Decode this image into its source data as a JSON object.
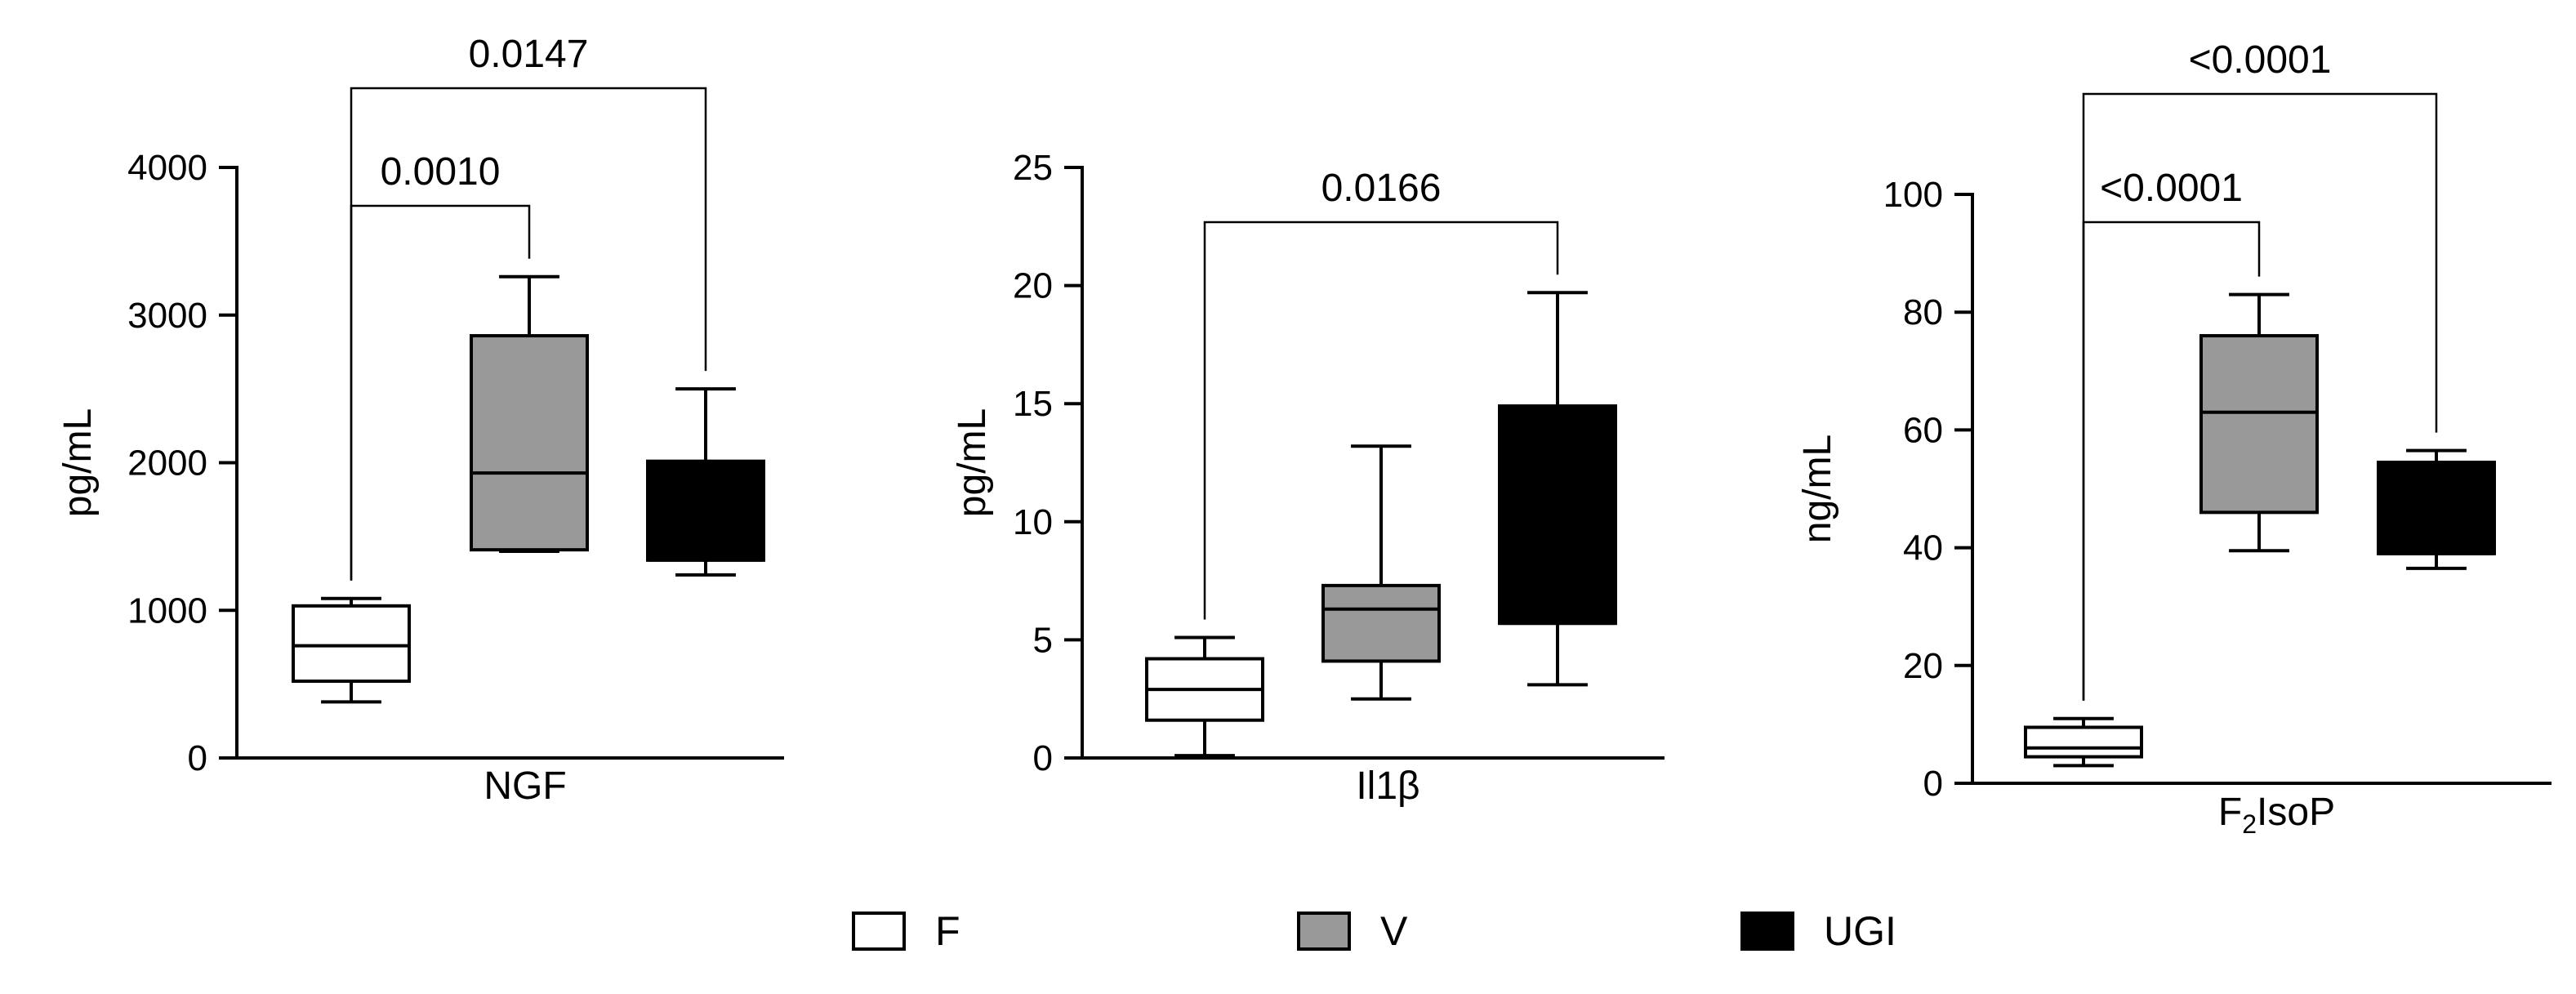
{
  "chart_data": [
    {
      "type": "box",
      "ylabel": "pg/mL",
      "xlabel": "NGF",
      "ylim": [
        0,
        4000
      ],
      "yticks": [
        0,
        1000,
        2000,
        3000,
        4000
      ],
      "ytick_labels": [
        "0",
        "1000",
        "2000",
        "3000",
        "4000"
      ],
      "series": [
        {
          "name": "F",
          "min": 380,
          "q1": 520,
          "median": 760,
          "q3": 1030,
          "max": 1080
        },
        {
          "name": "V",
          "min": 1400,
          "q1": 1410,
          "median": 1930,
          "q3": 2860,
          "max": 3260
        },
        {
          "name": "UGI",
          "min": 1240,
          "q1": 1340,
          "median": 1340,
          "q3": 2010,
          "max": 2500
        }
      ],
      "comparisons": [
        {
          "from": "F",
          "to": "V",
          "label": "0.0010"
        },
        {
          "from": "F",
          "to": "UGI",
          "label": "0.0147"
        }
      ]
    },
    {
      "type": "box",
      "ylabel": "pg/mL",
      "xlabel": "Il1β",
      "ylim": [
        0,
        25
      ],
      "yticks": [
        0,
        5,
        10,
        15,
        20,
        25
      ],
      "ytick_labels": [
        "0",
        "5",
        "10",
        "15",
        "20",
        "25"
      ],
      "series": [
        {
          "name": "F",
          "min": 0.1,
          "q1": 1.6,
          "median": 2.9,
          "q3": 4.2,
          "max": 5.1
        },
        {
          "name": "V",
          "min": 2.5,
          "q1": 4.1,
          "median": 6.3,
          "q3": 7.3,
          "max": 13.2
        },
        {
          "name": "UGI",
          "min": 3.1,
          "q1": 5.7,
          "median": 5.7,
          "q3": 14.9,
          "max": 19.7
        }
      ],
      "comparisons": [
        {
          "from": "F",
          "to": "UGI",
          "label": "0.0166"
        }
      ]
    },
    {
      "type": "box",
      "ylabel": "ng/mL",
      "xlabel": "F",
      "xlabel_sub": "2",
      "xlabel_rest": "IsoP",
      "ylim": [
        0,
        100
      ],
      "yticks": [
        0,
        20,
        40,
        60,
        80,
        100
      ],
      "ytick_labels": [
        "0",
        "20",
        "40",
        "60",
        "80",
        "100"
      ],
      "series": [
        {
          "name": "F",
          "min": 3,
          "q1": 4.5,
          "median": 6,
          "q3": 9.5,
          "max": 11
        },
        {
          "name": "V",
          "min": 39.5,
          "q1": 46,
          "median": 63,
          "q3": 76,
          "max": 83
        },
        {
          "name": "UGI",
          "min": 36.5,
          "q1": 39,
          "median": 39,
          "q3": 54.5,
          "max": 56.5
        }
      ],
      "comparisons": [
        {
          "from": "F",
          "to": "V",
          "label": "<0.0001"
        },
        {
          "from": "F",
          "to": "UGI",
          "label": "<0.0001"
        }
      ]
    }
  ],
  "legend": [
    {
      "label": "F",
      "color": "#ffffff"
    },
    {
      "label": "V",
      "color": "#999999"
    },
    {
      "label": "UGI",
      "color": "#000000"
    }
  ]
}
